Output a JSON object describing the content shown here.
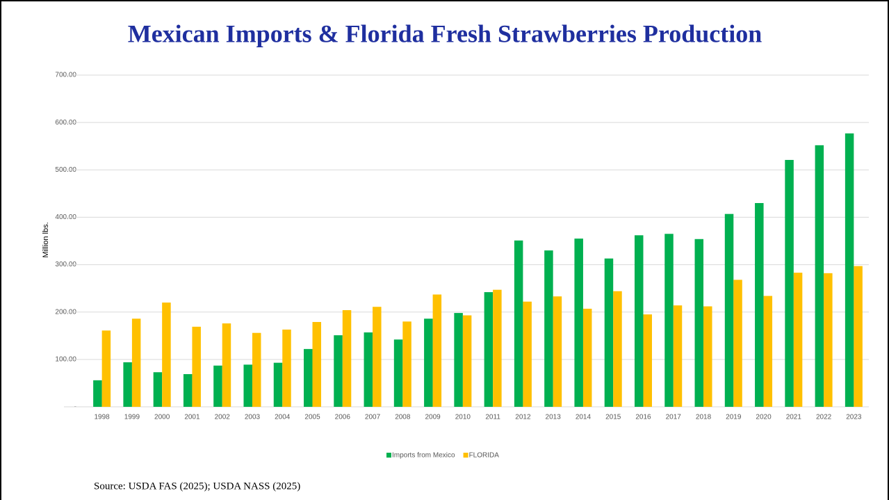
{
  "chart_data": {
    "type": "bar",
    "title": "Mexican Imports & Florida Fresh Strawberries Production",
    "y_label": "Million lbs.",
    "source": "Source: USDA FAS (2025); USDA NASS (2025)",
    "categories": [
      "1998",
      "1999",
      "2000",
      "2001",
      "2002",
      "2003",
      "2004",
      "2005",
      "2006",
      "2007",
      "2008",
      "2009",
      "2010",
      "2011",
      "2012",
      "2013",
      "2014",
      "2015",
      "2016",
      "2017",
      "2018",
      "2019",
      "2020",
      "2021",
      "2022",
      "2023"
    ],
    "series": [
      {
        "name": "Imports from Mexico",
        "color": "#00b050",
        "values": [
          56,
          94,
          73,
          69,
          87,
          89,
          93,
          122,
          151,
          157,
          142,
          186,
          198,
          242,
          351,
          330,
          355,
          313,
          362,
          365,
          354,
          407,
          430,
          521,
          552,
          577
        ]
      },
      {
        "name": "FLORIDA",
        "color": "#ffc000",
        "values": [
          161,
          186,
          220,
          169,
          176,
          156,
          163,
          179,
          204,
          211,
          180,
          237,
          193,
          247,
          222,
          233,
          207,
          244,
          195,
          214,
          212,
          268,
          234,
          283,
          282,
          297
        ]
      }
    ],
    "ylim": [
      0,
      700
    ],
    "yticks": [
      {
        "value": 0,
        "label": "-"
      },
      {
        "value": 100,
        "label": "100.00"
      },
      {
        "value": 200,
        "label": "200.00"
      },
      {
        "value": 300,
        "label": "300.00"
      },
      {
        "value": 400,
        "label": "400.00"
      },
      {
        "value": 500,
        "label": "500.00"
      },
      {
        "value": 600,
        "label": "600.00"
      },
      {
        "value": 700,
        "label": "700.00"
      }
    ],
    "grid": true,
    "legend": "bottom"
  }
}
